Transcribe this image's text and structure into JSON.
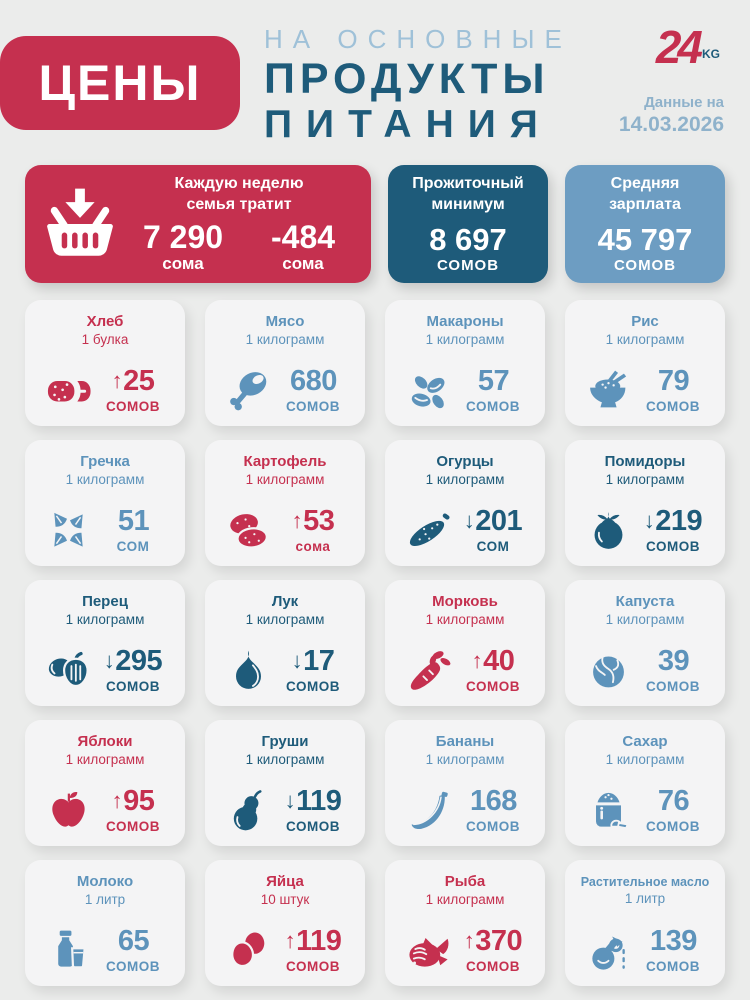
{
  "header": {
    "badge": "ЦЕНЫ",
    "subtitle": "НА ОСНОВНЫЕ",
    "title_line1": "ПРОДУКТЫ",
    "title_line2": "ПИТАНИЯ",
    "logo_number": "24",
    "logo_suffix": "KG",
    "date_label": "Данные на",
    "date_value": "14.03.2026"
  },
  "colors": {
    "red": "#c5304f",
    "teal": "#1e5b7a",
    "blue": "#5d93bb",
    "light_blue": "#6d9dc2",
    "pale_blue": "#9fc1d8",
    "date_blue": "#8fb2cb",
    "page_bg": "#ebeceb",
    "card_bg": "#f4f4f5"
  },
  "chart_data": {
    "type": "table",
    "title": "Цены на основные продукты питания",
    "as_of": "14.03.2026",
    "summary": {
      "weekly": {
        "icon": "basket-arrow-down-icon",
        "label_line1": "Каждую неделю",
        "label_line2": "семья тратит",
        "values": [
          {
            "amount": "7 290",
            "unit": "сома"
          },
          {
            "amount": "-484",
            "unit": "сома"
          }
        ]
      },
      "minimum": {
        "label_line1": "Прожиточный",
        "label_line2": "минимум",
        "amount": "8 697",
        "unit": "СОМОВ"
      },
      "salary": {
        "label_line1": "Средняя",
        "label_line2": "зарплата",
        "amount": "45 797",
        "unit": "СОМОВ"
      }
    },
    "products": [
      {
        "name": "Хлеб",
        "qty": "1 булка",
        "trend": "up",
        "price": 25,
        "unit": "СОМОВ",
        "theme": "red",
        "icon": "bread-icon"
      },
      {
        "name": "Мясо",
        "qty": "1 килограмм",
        "trend": "none",
        "price": 680,
        "unit": "СОМОВ",
        "theme": "blue",
        "icon": "meat-icon"
      },
      {
        "name": "Макароны",
        "qty": "1 килограмм",
        "trend": "none",
        "price": 57,
        "unit": "СОМОВ",
        "theme": "blue",
        "icon": "pasta-icon"
      },
      {
        "name": "Рис",
        "qty": "1 килограмм",
        "trend": "none",
        "price": 79,
        "unit": "СОМОВ",
        "theme": "blue",
        "icon": "rice-icon"
      },
      {
        "name": "Гречка",
        "qty": "1 килограмм",
        "trend": "none",
        "price": 51,
        "unit": "СОМ",
        "theme": "blue",
        "icon": "buckwheat-icon"
      },
      {
        "name": "Картофель",
        "qty": "1 килограмм",
        "trend": "up",
        "price": 53,
        "unit": "сома",
        "theme": "red",
        "icon": "potato-icon"
      },
      {
        "name": "Огурцы",
        "qty": "1 килограмм",
        "trend": "down",
        "price": 201,
        "unit": "СОМ",
        "theme": "teal",
        "icon": "cucumber-icon"
      },
      {
        "name": "Помидоры",
        "qty": "1 килограмм",
        "trend": "down",
        "price": 219,
        "unit": "СОМОВ",
        "theme": "teal",
        "icon": "tomato-icon"
      },
      {
        "name": "Перец",
        "qty": "1 килограмм",
        "trend": "down",
        "price": 295,
        "unit": "СОМОВ",
        "theme": "teal",
        "icon": "pepper-icon"
      },
      {
        "name": "Лук",
        "qty": "1 килограмм",
        "trend": "down",
        "price": 17,
        "unit": "СОМОВ",
        "theme": "teal",
        "icon": "onion-icon"
      },
      {
        "name": "Морковь",
        "qty": "1 килограмм",
        "trend": "up",
        "price": 40,
        "unit": "СОМОВ",
        "theme": "red",
        "icon": "carrot-icon"
      },
      {
        "name": "Капуста",
        "qty": "1 килограмм",
        "trend": "none",
        "price": 39,
        "unit": "СОМОВ",
        "theme": "blue",
        "icon": "cabbage-icon"
      },
      {
        "name": "Яблоки",
        "qty": "1 килограмм",
        "trend": "up",
        "price": 95,
        "unit": "СОМОВ",
        "theme": "red",
        "icon": "apple-icon"
      },
      {
        "name": "Груши",
        "qty": "1 килограмм",
        "trend": "down",
        "price": 119,
        "unit": "СОМОВ",
        "theme": "teal",
        "icon": "pear-icon"
      },
      {
        "name": "Бананы",
        "qty": "1 килограмм",
        "trend": "none",
        "price": 168,
        "unit": "СОМОВ",
        "theme": "blue",
        "icon": "banana-icon"
      },
      {
        "name": "Сахар",
        "qty": "1 килограмм",
        "trend": "none",
        "price": 76,
        "unit": "СОМОВ",
        "theme": "blue",
        "icon": "sugar-icon"
      },
      {
        "name": "Молоко",
        "qty": "1 литр",
        "trend": "none",
        "price": 65,
        "unit": "СОМОВ",
        "theme": "blue",
        "icon": "milk-icon"
      },
      {
        "name": "Яйца",
        "qty": "10 штук",
        "trend": "up",
        "price": 119,
        "unit": "СОМОВ",
        "theme": "red",
        "icon": "eggs-icon"
      },
      {
        "name": "Рыба",
        "qty": "1 килограмм",
        "trend": "up",
        "price": 370,
        "unit": "СОМОВ",
        "theme": "red",
        "icon": "fish-icon"
      },
      {
        "name": "Растительное масло",
        "qty": "1 литр",
        "trend": "none",
        "price": 139,
        "unit": "СОМОВ",
        "theme": "blue",
        "icon": "oil-icon"
      }
    ]
  }
}
